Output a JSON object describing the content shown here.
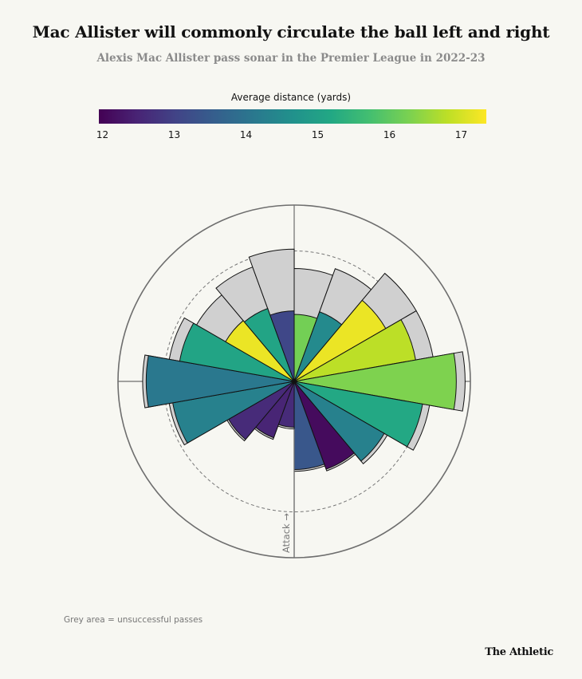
{
  "title": "Mac Allister will commonly circulate the ball left and right",
  "subtitle": "Alexis Mac Allister pass sonar in the Premier League in 2022-23",
  "legend": {
    "title": "Average distance (yards)",
    "ticks": [
      "12",
      "13",
      "14",
      "15",
      "16",
      "17"
    ],
    "min": 11.95,
    "max": 17.35,
    "colormap": [
      "#440154",
      "#482475",
      "#414487",
      "#355f8d",
      "#2a788e",
      "#21918c",
      "#22a884",
      "#44bf70",
      "#7ad151",
      "#bddf26",
      "#fde725"
    ]
  },
  "axis_label": "Attack →",
  "note": "Grey area = unsuccessful passes",
  "brand": "The Athletic",
  "chart_data": {
    "type": "polar-bar",
    "direction_labels_note": "Directions in degrees clockwise from up; attack direction is toward the bottom",
    "scale_max": 1.0,
    "dashed_ring": 0.74,
    "sectors": [
      {
        "direction": 10,
        "successful": 0.38,
        "total": 0.64,
        "avg_distance": 16.2
      },
      {
        "direction": 30,
        "successful": 0.42,
        "total": 0.68,
        "avg_distance": 14.5
      },
      {
        "direction": 50,
        "successful": 0.6,
        "total": 0.8,
        "avg_distance": 17.2
      },
      {
        "direction": 70,
        "successful": 0.7,
        "total": 0.8,
        "avg_distance": 16.8
      },
      {
        "direction": 90,
        "successful": 0.92,
        "total": 0.97,
        "avg_distance": 16.3
      },
      {
        "direction": 110,
        "successful": 0.74,
        "total": 0.78,
        "avg_distance": 15.2
      },
      {
        "direction": 130,
        "successful": 0.59,
        "total": 0.61,
        "avg_distance": 14.3
      },
      {
        "direction": 150,
        "successful": 0.53,
        "total": 0.54,
        "avg_distance": 12.1
      },
      {
        "direction": 170,
        "successful": 0.5,
        "total": 0.51,
        "avg_distance": 13.4
      },
      {
        "direction": 190,
        "successful": 0.26,
        "total": 0.27,
        "avg_distance": 12.6
      },
      {
        "direction": 210,
        "successful": 0.34,
        "total": 0.35,
        "avg_distance": 12.5
      },
      {
        "direction": 230,
        "successful": 0.43,
        "total": 0.44,
        "avg_distance": 12.6
      },
      {
        "direction": 250,
        "successful": 0.7,
        "total": 0.72,
        "avg_distance": 14.3
      },
      {
        "direction": 270,
        "successful": 0.84,
        "total": 0.86,
        "avg_distance": 14.1
      },
      {
        "direction": 290,
        "successful": 0.66,
        "total": 0.72,
        "avg_distance": 15.1
      },
      {
        "direction": 310,
        "successful": 0.45,
        "total": 0.64,
        "avg_distance": 17.2
      },
      {
        "direction": 330,
        "successful": 0.44,
        "total": 0.69,
        "avg_distance": 15.1
      },
      {
        "direction": 350,
        "successful": 0.4,
        "total": 0.75,
        "avg_distance": 13.1
      }
    ]
  }
}
